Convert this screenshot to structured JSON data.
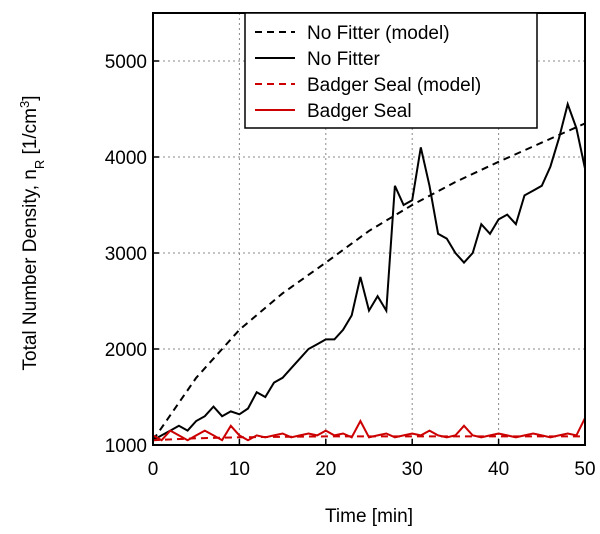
{
  "chart_data": {
    "type": "line",
    "xlabel": "Time [min]",
    "ylabel_parts": [
      "Total Number Density, n",
      "R",
      " [1/cm",
      "3",
      "]"
    ],
    "xlim": [
      0,
      50
    ],
    "xticks": [
      0,
      10,
      20,
      30,
      40,
      50
    ],
    "ylim": [
      1000,
      5500
    ],
    "yticks": [
      1000,
      2000,
      3000,
      4000,
      5000
    ],
    "grid": true,
    "legend": "upper center",
    "series": [
      {
        "name": "No Fitter (model)",
        "color": "#000000",
        "dashed": true,
        "x": [
          0,
          5,
          10,
          15,
          20,
          25,
          30,
          35,
          40,
          45,
          50
        ],
        "values": [
          1050,
          1700,
          2200,
          2580,
          2900,
          3230,
          3500,
          3740,
          3950,
          4150,
          4350
        ]
      },
      {
        "name": "No Fitter",
        "color": "#000000",
        "dashed": false,
        "x": [
          0,
          1,
          2,
          3,
          4,
          5,
          6,
          7,
          8,
          9,
          10,
          11,
          12,
          13,
          14,
          15,
          16,
          17,
          18,
          19,
          20,
          21,
          22,
          23,
          24,
          25,
          26,
          27,
          28,
          29,
          30,
          31,
          32,
          33,
          34,
          35,
          36,
          37,
          38,
          39,
          40,
          41,
          42,
          43,
          44,
          45,
          46,
          47,
          48,
          49,
          50
        ],
        "values": [
          1050,
          1100,
          1150,
          1200,
          1150,
          1250,
          1300,
          1400,
          1300,
          1350,
          1320,
          1380,
          1550,
          1500,
          1650,
          1700,
          1800,
          1900,
          2000,
          2050,
          2100,
          2100,
          2200,
          2350,
          2750,
          2400,
          2550,
          2400,
          3700,
          3500,
          3550,
          4100,
          3700,
          3200,
          3150,
          3000,
          2900,
          3000,
          3300,
          3200,
          3350,
          3400,
          3300,
          3600,
          3650,
          3700,
          3900,
          4200,
          4550,
          4300,
          3880
        ]
      },
      {
        "name": "Badger Seal (model)",
        "color": "#cc0000",
        "dashed": true,
        "x": [
          0,
          5,
          10,
          15,
          20,
          25,
          30,
          35,
          40,
          45,
          50
        ],
        "values": [
          1050,
          1070,
          1080,
          1085,
          1090,
          1090,
          1090,
          1090,
          1090,
          1090,
          1090
        ]
      },
      {
        "name": "Badger Seal",
        "color": "#cc0000",
        "dashed": false,
        "x": [
          0,
          1,
          2,
          3,
          4,
          5,
          6,
          7,
          8,
          9,
          10,
          11,
          12,
          13,
          14,
          15,
          16,
          17,
          18,
          19,
          20,
          21,
          22,
          23,
          24,
          25,
          26,
          27,
          28,
          29,
          30,
          31,
          32,
          33,
          34,
          35,
          36,
          37,
          38,
          39,
          40,
          41,
          42,
          43,
          44,
          45,
          46,
          47,
          48,
          49,
          50
        ],
        "values": [
          1100,
          1050,
          1150,
          1100,
          1050,
          1100,
          1150,
          1100,
          1050,
          1200,
          1100,
          1050,
          1100,
          1080,
          1100,
          1120,
          1080,
          1100,
          1120,
          1100,
          1150,
          1100,
          1120,
          1080,
          1250,
          1080,
          1100,
          1120,
          1080,
          1100,
          1120,
          1100,
          1150,
          1100,
          1080,
          1100,
          1200,
          1100,
          1080,
          1100,
          1120,
          1100,
          1080,
          1100,
          1120,
          1100,
          1080,
          1100,
          1120,
          1100,
          1280
        ]
      }
    ]
  }
}
